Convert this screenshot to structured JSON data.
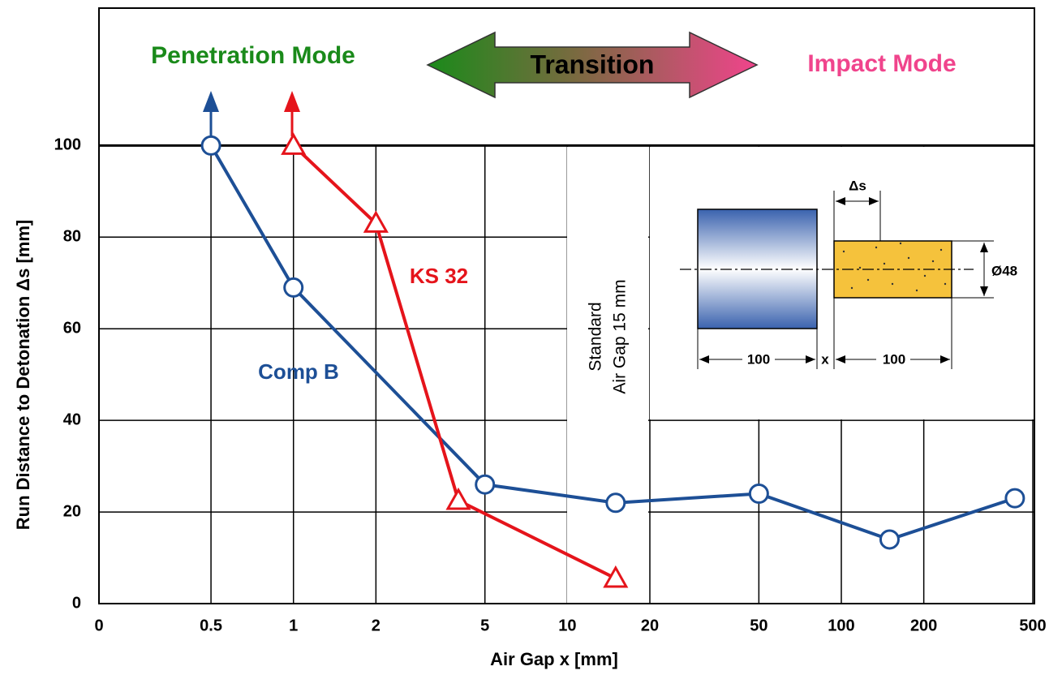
{
  "chart_data": {
    "type": "line",
    "x_label": "Air Gap x [mm]",
    "y_label": "Run Distance to Detonation Δs [mm]",
    "xscale": "log",
    "xlim": [
      0.195,
      500
    ],
    "xticks": [
      {
        "value": 0.195,
        "label": "0"
      },
      0.5,
      1,
      2,
      5,
      10,
      20,
      50,
      100,
      200,
      500
    ],
    "ylim": [
      0,
      130
    ],
    "yticks": [
      0,
      20,
      40,
      60,
      80,
      100
    ],
    "grid": true,
    "series": [
      {
        "name": "Comp B",
        "color": "#1d4f96",
        "marker": "circle",
        "x": [
          0.5,
          1,
          5,
          15,
          50,
          150,
          430
        ],
        "values": [
          100,
          69,
          26,
          22,
          24,
          14,
          23
        ]
      },
      {
        "name": "KS 32",
        "color": "#e5141b",
        "marker": "triangle",
        "x": [
          1,
          2,
          4,
          15
        ],
        "values": [
          100,
          83,
          22.5,
          5.5
        ]
      }
    ],
    "annotations": [
      "Penetration Mode",
      "Transition",
      "Impact Mode",
      "Standard",
      "Air Gap 15 mm"
    ],
    "diagram_labels": [
      "Δs",
      "Ø48",
      "100",
      "x",
      "100"
    ]
  }
}
